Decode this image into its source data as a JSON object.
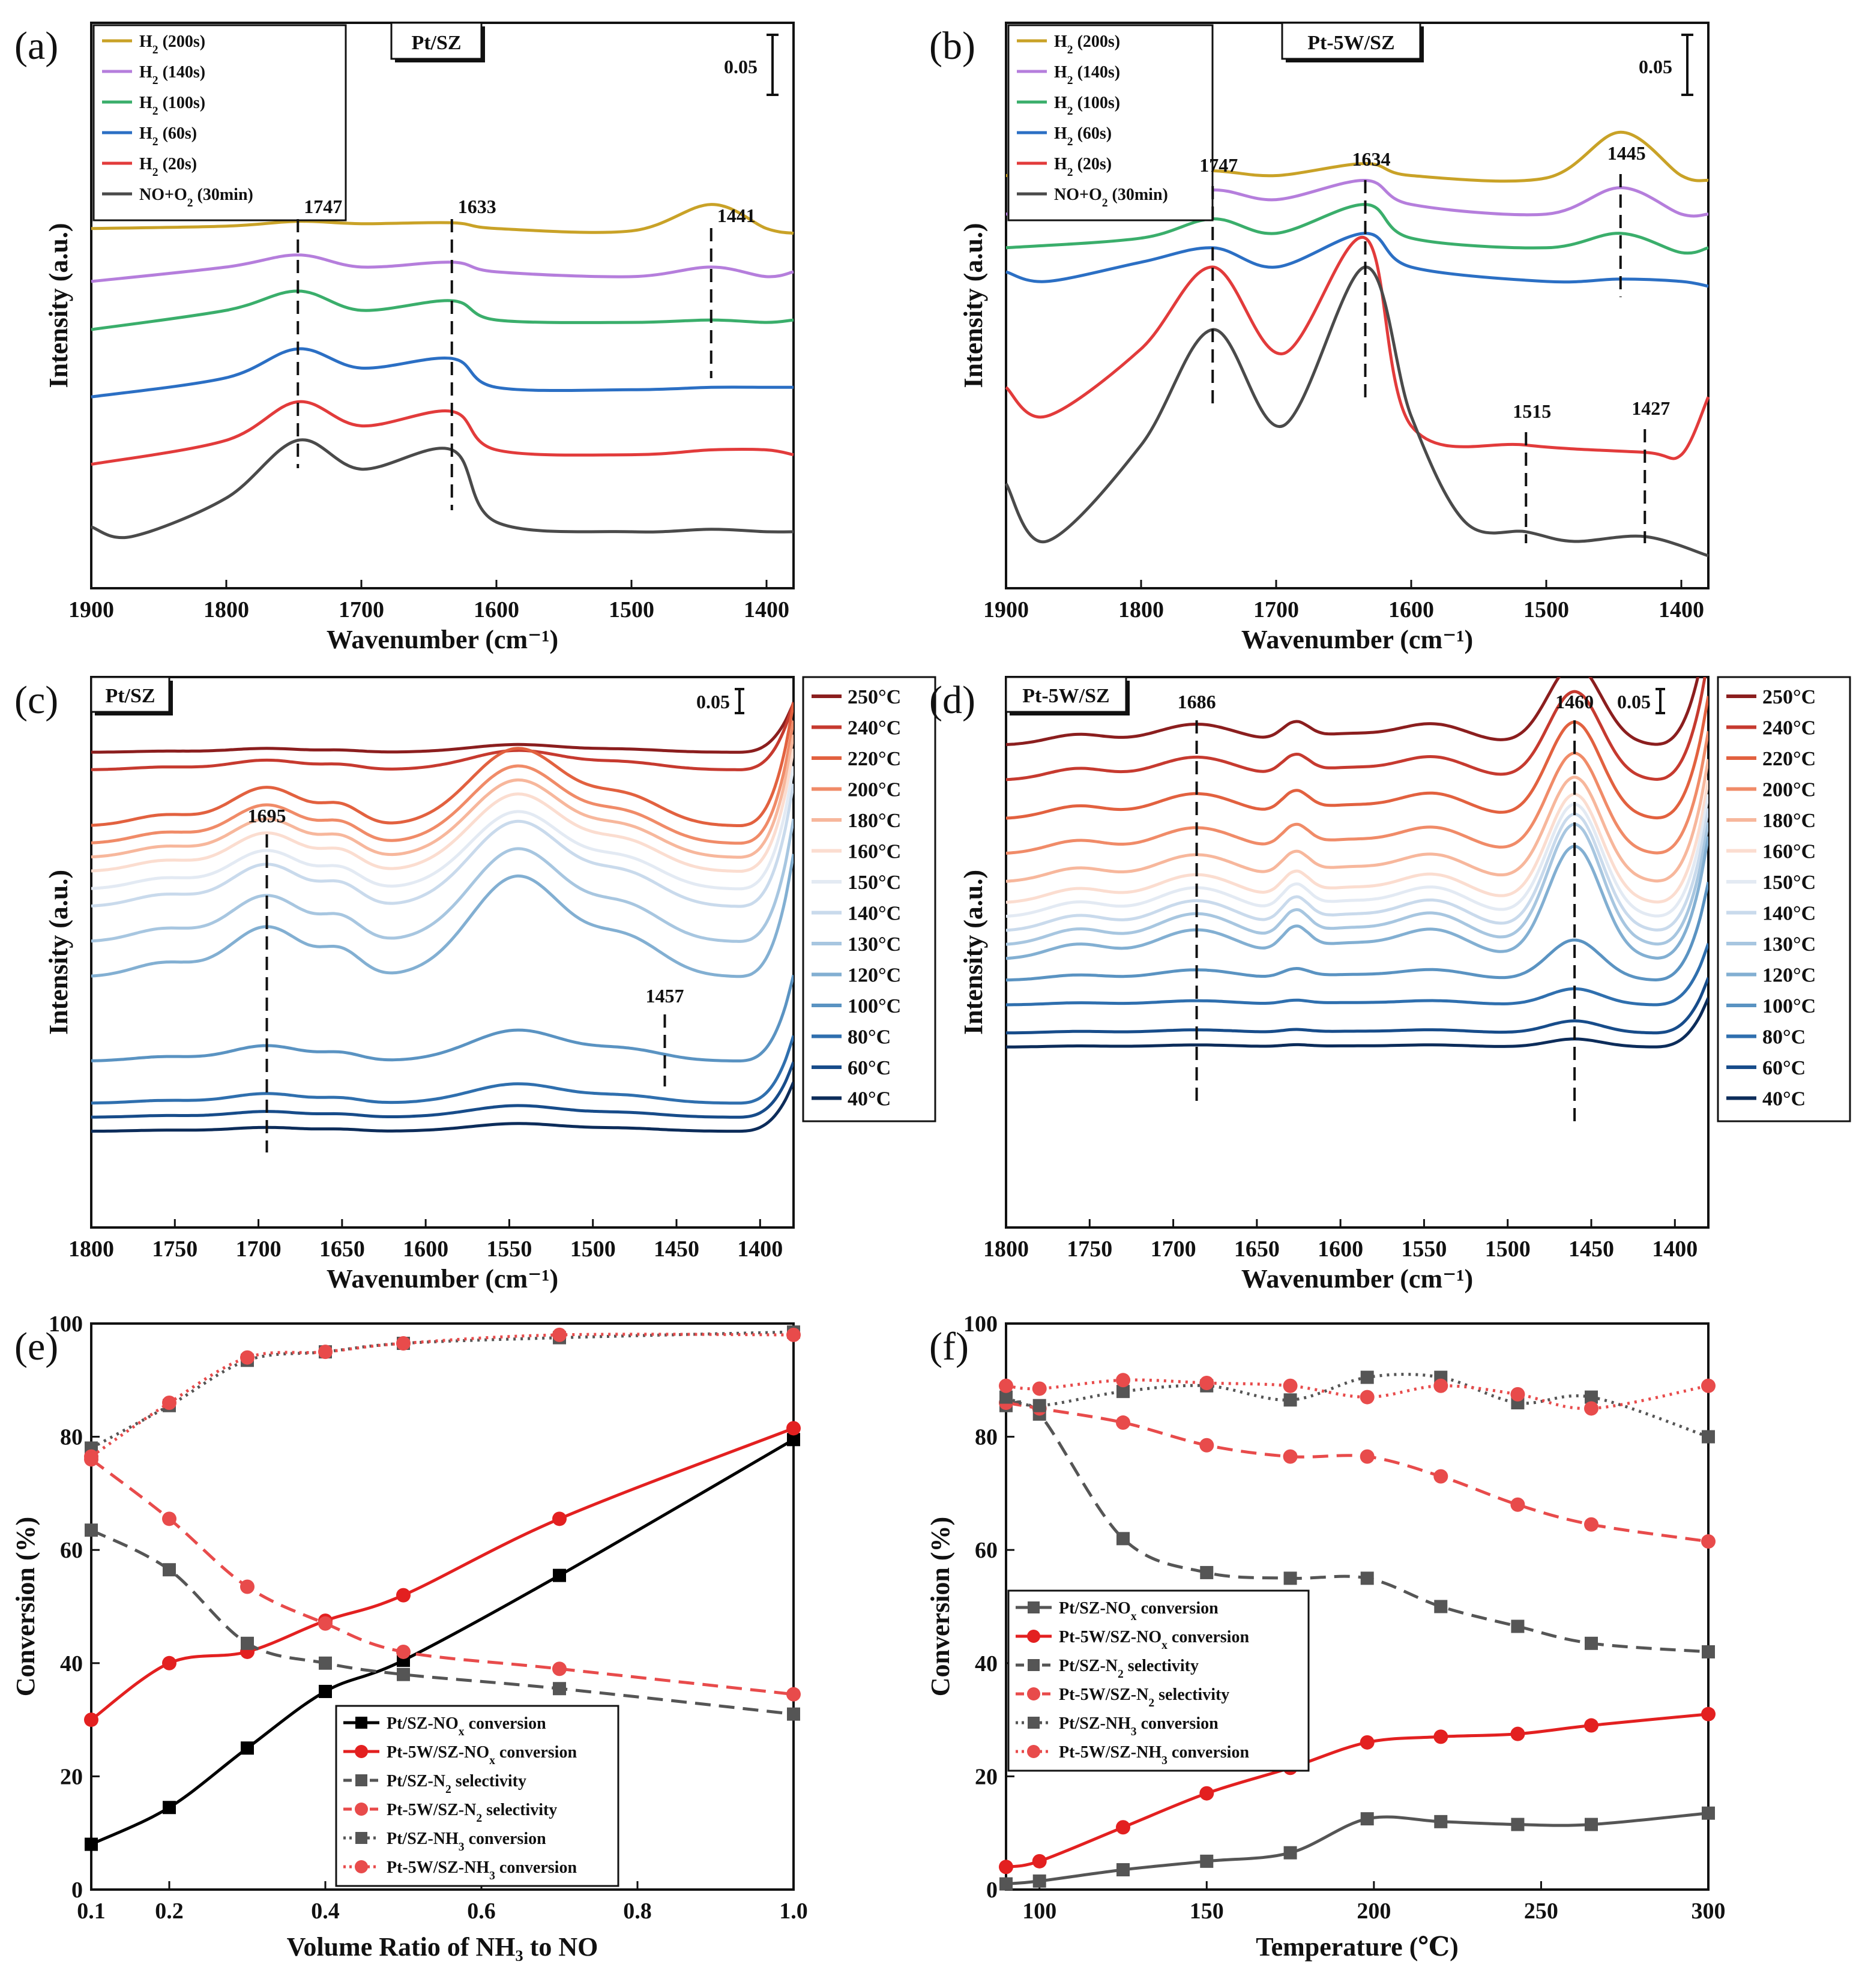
{
  "figure": "Combined figure panels (a)-(f)",
  "colors": {
    "gold": "#C9A227",
    "purple": "#B57EDC",
    "green": "#3AAE6B",
    "blue": "#2B6FC4",
    "red": "#E23B3B",
    "dark": "#4A4A4A",
    "black": "#000000",
    "temp_palette": [
      "#8B1E1E",
      "#C63A2F",
      "#E2613F",
      "#F08B68",
      "#F7B79C",
      "#FBDDD0",
      "#E3EAF3",
      "#C9DAEC",
      "#A7C6E0",
      "#82AFD2",
      "#5A93C2",
      "#2F6FAE",
      "#174C8A",
      "#0C2C5A"
    ]
  },
  "chart_data": [
    {
      "panel": "(a)",
      "type": "line",
      "title": "Pt/SZ",
      "xlabel": "Wavenumber (cm⁻¹)",
      "ylabel": "Intensity (a.u.)",
      "xlim": [
        1900,
        1380
      ],
      "x_ticks": [
        "1900",
        "1800",
        "1700",
        "1600",
        "1500",
        "1400"
      ],
      "scale_bar": "0.05",
      "legend": [
        {
          "pre": "H",
          "sub": "2",
          "post": " (200s)"
        },
        {
          "pre": "H",
          "sub": "2",
          "post": " (140s)"
        },
        {
          "pre": "H",
          "sub": "2",
          "post": " (100s)"
        },
        {
          "pre": "H",
          "sub": "2",
          "post": " (60s)"
        },
        {
          "pre": "H",
          "sub": "2",
          "post": " (20s)"
        },
        {
          "pre": "NO+O",
          "sub": "2",
          "post": " (30min)"
        }
      ],
      "annotations": [
        "1747",
        "1633",
        "1441"
      ],
      "series": [
        {
          "name": "H2 (200s)",
          "color": "#C9A227",
          "x": [
            1900,
            1800,
            1747,
            1700,
            1633,
            1600,
            1500,
            1441,
            1400,
            1380
          ],
          "y": [
            7.1,
            7.15,
            7.25,
            7.2,
            7.22,
            7.1,
            7.05,
            7.6,
            7.1,
            7.0
          ]
        },
        {
          "name": "H2 (140s)",
          "color": "#B57EDC",
          "x": [
            1900,
            1800,
            1747,
            1700,
            1633,
            1600,
            1500,
            1441,
            1400,
            1380
          ],
          "y": [
            6.0,
            6.3,
            6.55,
            6.3,
            6.4,
            6.2,
            6.1,
            6.3,
            6.1,
            6.2
          ]
        },
        {
          "name": "H2 (100s)",
          "color": "#3AAE6B",
          "x": [
            1900,
            1800,
            1747,
            1700,
            1633,
            1600,
            1500,
            1441,
            1400,
            1380
          ],
          "y": [
            5.0,
            5.4,
            5.8,
            5.4,
            5.6,
            5.2,
            5.15,
            5.2,
            5.15,
            5.2
          ]
        },
        {
          "name": "H2 (60s)",
          "color": "#2B6FC4",
          "x": [
            1900,
            1800,
            1747,
            1700,
            1633,
            1600,
            1500,
            1441,
            1400,
            1380
          ],
          "y": [
            3.6,
            4.0,
            4.6,
            4.2,
            4.4,
            3.8,
            3.75,
            3.8,
            3.8,
            3.8
          ]
        },
        {
          "name": "H2 (20s)",
          "color": "#E23B3B",
          "x": [
            1900,
            1800,
            1747,
            1700,
            1633,
            1600,
            1500,
            1441,
            1400,
            1380
          ],
          "y": [
            2.2,
            2.7,
            3.5,
            3.0,
            3.3,
            2.5,
            2.4,
            2.5,
            2.5,
            2.4
          ]
        },
        {
          "name": "NO+O2 (30min)",
          "color": "#4A4A4A",
          "x": [
            1900,
            1870,
            1800,
            1747,
            1700,
            1633,
            1600,
            1500,
            1441,
            1400,
            1380
          ],
          "y": [
            0.9,
            0.7,
            1.5,
            2.7,
            2.1,
            2.5,
            1.0,
            0.8,
            0.85,
            0.8,
            0.8
          ]
        }
      ]
    },
    {
      "panel": "(b)",
      "type": "line",
      "title": "Pt-5W/SZ",
      "xlabel": "Wavenumber (cm⁻¹)",
      "ylabel": "Intensity (a.u.)",
      "xlim": [
        1900,
        1380
      ],
      "x_ticks": [
        "1900",
        "1800",
        "1700",
        "1600",
        "1500",
        "1400"
      ],
      "scale_bar": "0.05",
      "legend": [
        {
          "pre": "H",
          "sub": "2",
          "post": " (200s)"
        },
        {
          "pre": "H",
          "sub": "2",
          "post": " (140s)"
        },
        {
          "pre": "H",
          "sub": "2",
          "post": " (100s)"
        },
        {
          "pre": "H",
          "sub": "2",
          "post": " (60s)"
        },
        {
          "pre": "H",
          "sub": "2",
          "post": " (20s)"
        },
        {
          "pre": "NO+O",
          "sub": "2",
          "post": " (30min)"
        }
      ],
      "annotations": [
        "1747",
        "1634",
        "1445",
        "1515",
        "1427"
      ],
      "series": [
        {
          "name": "H2 (200s)",
          "color": "#C9A227",
          "x": [
            1900,
            1800,
            1747,
            1700,
            1634,
            1600,
            1500,
            1445,
            1400,
            1380
          ],
          "y": [
            8.2,
            8.25,
            8.3,
            8.2,
            8.45,
            8.2,
            8.15,
            9.1,
            8.2,
            8.1
          ]
        },
        {
          "name": "H2 (140s)",
          "color": "#B57EDC",
          "x": [
            1900,
            1800,
            1747,
            1700,
            1634,
            1600,
            1500,
            1445,
            1400,
            1380
          ],
          "y": [
            7.4,
            7.6,
            7.9,
            7.7,
            8.1,
            7.6,
            7.4,
            7.95,
            7.4,
            7.4
          ]
        },
        {
          "name": "H2 (100s)",
          "color": "#3AAE6B",
          "x": [
            1900,
            1800,
            1747,
            1700,
            1634,
            1600,
            1500,
            1445,
            1400,
            1380
          ],
          "y": [
            6.7,
            6.9,
            7.3,
            7.0,
            7.6,
            6.9,
            6.7,
            7.0,
            6.6,
            6.7
          ]
        },
        {
          "name": "H2 (60s)",
          "color": "#2B6FC4",
          "x": [
            1900,
            1870,
            1800,
            1747,
            1700,
            1634,
            1600,
            1500,
            1445,
            1400,
            1380
          ],
          "y": [
            6.2,
            6.0,
            6.4,
            6.7,
            6.3,
            7.0,
            6.3,
            6.0,
            6.05,
            6.0,
            5.9
          ]
        },
        {
          "name": "H2 (20s)",
          "color": "#E23B3B",
          "x": [
            1900,
            1870,
            1800,
            1747,
            1695,
            1634,
            1600,
            1515,
            1427,
            1400,
            1380
          ],
          "y": [
            3.8,
            3.2,
            4.6,
            6.3,
            4.5,
            6.9,
            3.0,
            2.6,
            2.45,
            2.4,
            3.6
          ]
        },
        {
          "name": "NO+O2 (30min)",
          "color": "#4A4A4A",
          "x": [
            1900,
            1870,
            1800,
            1747,
            1695,
            1634,
            1600,
            1560,
            1515,
            1480,
            1427,
            1380
          ],
          "y": [
            1.8,
            0.6,
            2.6,
            5.0,
            3.0,
            6.3,
            3.2,
            1.0,
            0.8,
            0.6,
            0.7,
            0.3
          ]
        }
      ]
    },
    {
      "panel": "(c)",
      "type": "line",
      "title": "Pt/SZ",
      "xlabel": "Wavenumber (cm⁻¹)",
      "ylabel": "Intensity (a.u.)",
      "xlim": [
        1800,
        1380
      ],
      "x_ticks": [
        "1800",
        "1750",
        "1700",
        "1650",
        "1600",
        "1550",
        "1500",
        "1450",
        "1400"
      ],
      "scale_bar": "0.05",
      "annotations": [
        "1695",
        "1457"
      ],
      "legend": [
        "250°C",
        "240°C",
        "220°C",
        "200°C",
        "180°C",
        "160°C",
        "150°C",
        "140°C",
        "130°C",
        "120°C",
        "100°C",
        "80°C",
        "60°C",
        "40°C"
      ],
      "offsets": [
        13.2,
        12.7,
        11.1,
        10.6,
        10.2,
        9.8,
        9.3,
        8.8,
        7.8,
        6.8,
        4.4,
        3.2,
        2.8,
        2.4
      ],
      "peak_scale": [
        0.1,
        0.25,
        1.0,
        1.0,
        1.0,
        1.0,
        1.0,
        1.1,
        1.2,
        1.3,
        0.4,
        0.25,
        0.15,
        0.1
      ]
    },
    {
      "panel": "(d)",
      "type": "line",
      "title": "Pt-5W/SZ",
      "xlabel": "Wavenumber (cm⁻¹)",
      "ylabel": "Intensity (a.u.)",
      "xlim": [
        1800,
        1380
      ],
      "x_ticks": [
        "1800",
        "1750",
        "1700",
        "1650",
        "1600",
        "1550",
        "1500",
        "1450",
        "1400"
      ],
      "scale_bar": "0.05",
      "annotations": [
        "1686",
        "1460"
      ],
      "legend": [
        "250°C",
        "240°C",
        "220°C",
        "200°C",
        "180°C",
        "160°C",
        "150°C",
        "140°C",
        "130°C",
        "120°C",
        "100°C",
        "80°C",
        "60°C",
        "40°C"
      ],
      "offsets": [
        13.4,
        12.4,
        11.3,
        10.3,
        9.5,
        8.9,
        8.5,
        8.1,
        7.7,
        7.3,
        6.7,
        6.0,
        5.2,
        4.8
      ],
      "peak_scale": [
        1.0,
        1.1,
        1.2,
        1.25,
        1.3,
        1.35,
        1.4,
        1.45,
        1.5,
        1.4,
        0.5,
        0.2,
        0.15,
        0.1
      ]
    },
    {
      "panel": "(e)",
      "type": "line",
      "xlabel": "Volume Ratio of NH₃ to NO",
      "ylabel": "Conversion (%)",
      "xlim": [
        0.1,
        1.0
      ],
      "ylim": [
        0,
        100
      ],
      "x_ticks": [
        "0.1",
        "0.2",
        "0.4",
        "0.6",
        "0.8",
        "1.0"
      ],
      "y_ticks": [
        "0",
        "20",
        "40",
        "60",
        "80",
        "100"
      ],
      "legend": [
        {
          "pre": "Pt/SZ-NO",
          "sub": "x",
          "post": " conversion"
        },
        {
          "pre": "Pt-5W/SZ-NO",
          "sub": "x",
          "post": " conversion"
        },
        {
          "pre": "Pt/SZ-N",
          "sub": "2",
          "post": " selectivity"
        },
        {
          "pre": "Pt-5W/SZ-N",
          "sub": "2",
          "post": " selectivity"
        },
        {
          "pre": "Pt/SZ-NH",
          "sub": "3",
          "post": " conversion"
        },
        {
          "pre": "Pt-5W/SZ-NH",
          "sub": "3",
          "post": " conversion"
        }
      ],
      "series": [
        {
          "name": "Pt/SZ-NOx conversion",
          "color": "#000000",
          "dash": "none",
          "marker": "square",
          "x": [
            0.1,
            0.2,
            0.3,
            0.4,
            0.5,
            0.7,
            1.0
          ],
          "y": [
            8,
            14.5,
            25,
            35,
            40.5,
            55.5,
            79.5
          ]
        },
        {
          "name": "Pt-5W/SZ-NOx conversion",
          "color": "#E32020",
          "dash": "none",
          "marker": "circle",
          "x": [
            0.1,
            0.2,
            0.3,
            0.4,
            0.5,
            0.7,
            1.0
          ],
          "y": [
            30,
            40,
            42,
            47.5,
            52,
            65.5,
            81.5
          ]
        },
        {
          "name": "Pt/SZ-N2 selectivity",
          "color": "#555555",
          "dash": "26 14",
          "marker": "square",
          "x": [
            0.1,
            0.2,
            0.3,
            0.4,
            0.5,
            0.7,
            1.0
          ],
          "y": [
            63.5,
            56.5,
            43.5,
            40,
            38,
            35.5,
            31
          ]
        },
        {
          "name": "Pt-5W/SZ-N2 selectivity",
          "color": "#E84B4B",
          "dash": "26 14",
          "marker": "circle",
          "x": [
            0.1,
            0.2,
            0.3,
            0.4,
            0.5,
            0.7,
            1.0
          ],
          "y": [
            76,
            65.5,
            53.5,
            47,
            42,
            39,
            34.5
          ]
        },
        {
          "name": "Pt/SZ-NH3 conversion",
          "color": "#555555",
          "dash": "4 8",
          "marker": "square",
          "x": [
            0.1,
            0.2,
            0.3,
            0.4,
            0.5,
            0.7,
            1.0
          ],
          "y": [
            78,
            85.5,
            93.5,
            95,
            96.5,
            97.5,
            98.5
          ]
        },
        {
          "name": "Pt-5W/SZ-NH3 conversion",
          "color": "#E84B4B",
          "dash": "4 8",
          "marker": "circle",
          "x": [
            0.1,
            0.2,
            0.3,
            0.4,
            0.5,
            0.7,
            1.0
          ],
          "y": [
            76.5,
            86,
            94,
            95,
            96.5,
            98,
            98
          ]
        }
      ]
    },
    {
      "panel": "(f)",
      "type": "line",
      "xlabel": "Temperature (℃)",
      "ylabel": "Conversion (%)",
      "xlim": [
        90,
        300
      ],
      "ylim": [
        0,
        100
      ],
      "x_ticks": [
        "100",
        "150",
        "200",
        "250",
        "300"
      ],
      "y_ticks": [
        "0",
        "20",
        "40",
        "60",
        "80",
        "100"
      ],
      "legend": [
        {
          "pre": "Pt/SZ-NO",
          "sub": "x",
          "post": " conversion"
        },
        {
          "pre": "Pt-5W/SZ-NO",
          "sub": "x",
          "post": " conversion"
        },
        {
          "pre": "Pt/SZ-N",
          "sub": "2",
          "post": " selectivity"
        },
        {
          "pre": "Pt-5W/SZ-N",
          "sub": "2",
          "post": " selectivity"
        },
        {
          "pre": "Pt/SZ-NH",
          "sub": "3",
          "post": " conversion"
        },
        {
          "pre": "Pt-5W/SZ-NH",
          "sub": "3",
          "post": " conversion"
        }
      ],
      "series": [
        {
          "name": "Pt/SZ-NOx conversion",
          "color": "#555555",
          "dash": "none",
          "marker": "square",
          "x": [
            90,
            100,
            125,
            150,
            175,
            198,
            220,
            243,
            265,
            300
          ],
          "y": [
            1,
            1.5,
            3.5,
            5,
            6.5,
            12.5,
            12,
            11.5,
            11.5,
            13.5
          ]
        },
        {
          "name": "Pt-5W/SZ-NOx conversion",
          "color": "#E32020",
          "dash": "none",
          "marker": "circle",
          "x": [
            90,
            100,
            125,
            150,
            175,
            198,
            220,
            243,
            265,
            300
          ],
          "y": [
            4,
            5,
            11,
            17,
            21.5,
            26,
            27,
            27.5,
            29,
            31
          ]
        },
        {
          "name": "Pt/SZ-N2 selectivity",
          "color": "#555555",
          "dash": "26 14",
          "marker": "square",
          "x": [
            90,
            100,
            125,
            150,
            175,
            198,
            220,
            243,
            265,
            300
          ],
          "y": [
            85.5,
            84,
            62,
            56,
            55,
            55,
            50,
            46.5,
            43.5,
            42
          ]
        },
        {
          "name": "Pt-5W/SZ-N2 selectivity",
          "color": "#E84B4B",
          "dash": "26 14",
          "marker": "circle",
          "x": [
            90,
            100,
            125,
            150,
            175,
            198,
            220,
            243,
            265,
            300
          ],
          "y": [
            86,
            85,
            82.5,
            78.5,
            76.5,
            76.5,
            73,
            68,
            64.5,
            61.5
          ]
        },
        {
          "name": "Pt/SZ-NH3 conversion",
          "color": "#555555",
          "dash": "4 8",
          "marker": "square",
          "x": [
            90,
            100,
            125,
            150,
            175,
            198,
            220,
            243,
            265,
            300
          ],
          "y": [
            87,
            85.5,
            88,
            89,
            86.5,
            90.5,
            90.5,
            86,
            87,
            80
          ]
        },
        {
          "name": "Pt-5W/SZ-NH3 conversion",
          "color": "#E84B4B",
          "dash": "4 8",
          "marker": "circle",
          "x": [
            90,
            100,
            125,
            150,
            175,
            198,
            220,
            243,
            265,
            300
          ],
          "y": [
            89,
            88.5,
            90,
            89.5,
            89,
            87,
            89,
            87.5,
            85,
            89
          ]
        }
      ]
    }
  ]
}
